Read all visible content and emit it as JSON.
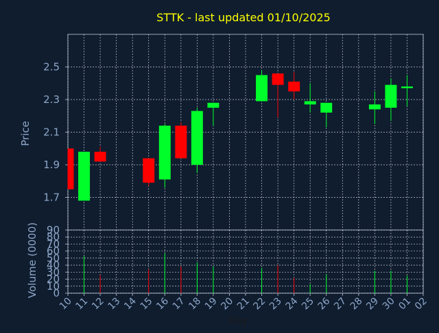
{
  "chart_data": {
    "type": "candlestick",
    "title": "STTK - last updated 01/10/2025",
    "xlabel": "Day",
    "price_panel": {
      "ylabel": "Price",
      "ylim": [
        1.5,
        2.7
      ],
      "yticks": [
        "1.7",
        "1.9",
        "2.1",
        "2.3",
        "2.5"
      ],
      "ytick_values": [
        1.7,
        1.9,
        2.1,
        2.3,
        2.5
      ],
      "grid": true
    },
    "volume_panel": {
      "ylabel": "Volume (0000)",
      "ylim": [
        0,
        90
      ],
      "yticks": [
        "0",
        "10",
        "20",
        "30",
        "40",
        "50",
        "60",
        "70",
        "80",
        "90"
      ],
      "ytick_values": [
        0,
        10,
        20,
        30,
        40,
        50,
        60,
        70,
        80,
        90
      ],
      "grid": true
    },
    "x_ticks": [
      "10",
      "11",
      "12",
      "13",
      "14",
      "15",
      "16",
      "17",
      "18",
      "19",
      "20",
      "21",
      "22",
      "23",
      "24",
      "25",
      "26",
      "27",
      "28",
      "29",
      "30",
      "01",
      "02"
    ],
    "colors": {
      "background": "#0f1d2f",
      "plot_background": "#0f1d2f",
      "up": "#00ff2a",
      "down": "#ff0000",
      "axis_text": "#8ea6c8",
      "title": "#ffff00",
      "grid": "#ffffff"
    },
    "candles": [
      {
        "day": "10",
        "open": 2.0,
        "high": 2.0,
        "low": 1.75,
        "close": 1.75,
        "volume": 0
      },
      {
        "day": "11",
        "open": 1.68,
        "high": 1.98,
        "low": 1.68,
        "close": 1.98,
        "volume": 53
      },
      {
        "day": "12",
        "open": 1.98,
        "high": 2.01,
        "low": 1.92,
        "close": 1.92,
        "volume": 26
      },
      {
        "day": "15",
        "open": 1.94,
        "high": 1.94,
        "low": 1.77,
        "close": 1.79,
        "volume": 34
      },
      {
        "day": "16",
        "open": 1.81,
        "high": 2.15,
        "low": 1.76,
        "close": 2.14,
        "volume": 57
      },
      {
        "day": "17",
        "open": 2.14,
        "high": 2.16,
        "low": 1.94,
        "close": 1.94,
        "volume": 38
      },
      {
        "day": "18",
        "open": 1.9,
        "high": 2.25,
        "low": 1.85,
        "close": 2.23,
        "volume": 44
      },
      {
        "day": "19",
        "open": 2.25,
        "high": 2.28,
        "low": 2.14,
        "close": 2.28,
        "volume": 38
      },
      {
        "day": "22",
        "open": 2.29,
        "high": 2.48,
        "low": 2.29,
        "close": 2.45,
        "volume": 36
      },
      {
        "day": "23",
        "open": 2.46,
        "high": 2.46,
        "low": 2.19,
        "close": 2.39,
        "volume": 40
      },
      {
        "day": "24",
        "open": 2.41,
        "high": 2.47,
        "low": 2.3,
        "close": 2.35,
        "volume": 22
      },
      {
        "day": "25",
        "open": 2.27,
        "high": 2.4,
        "low": 2.22,
        "close": 2.29,
        "volume": 13
      },
      {
        "day": "26",
        "open": 2.22,
        "high": 2.28,
        "low": 2.13,
        "close": 2.28,
        "volume": 27
      },
      {
        "day": "29",
        "open": 2.24,
        "high": 2.35,
        "low": 2.15,
        "close": 2.27,
        "volume": 32
      },
      {
        "day": "30",
        "open": 2.25,
        "high": 2.43,
        "low": 2.17,
        "close": 2.39,
        "volume": 32
      },
      {
        "day": "01",
        "open": 2.37,
        "high": 2.45,
        "low": 2.26,
        "close": 2.38,
        "volume": 25
      }
    ]
  }
}
